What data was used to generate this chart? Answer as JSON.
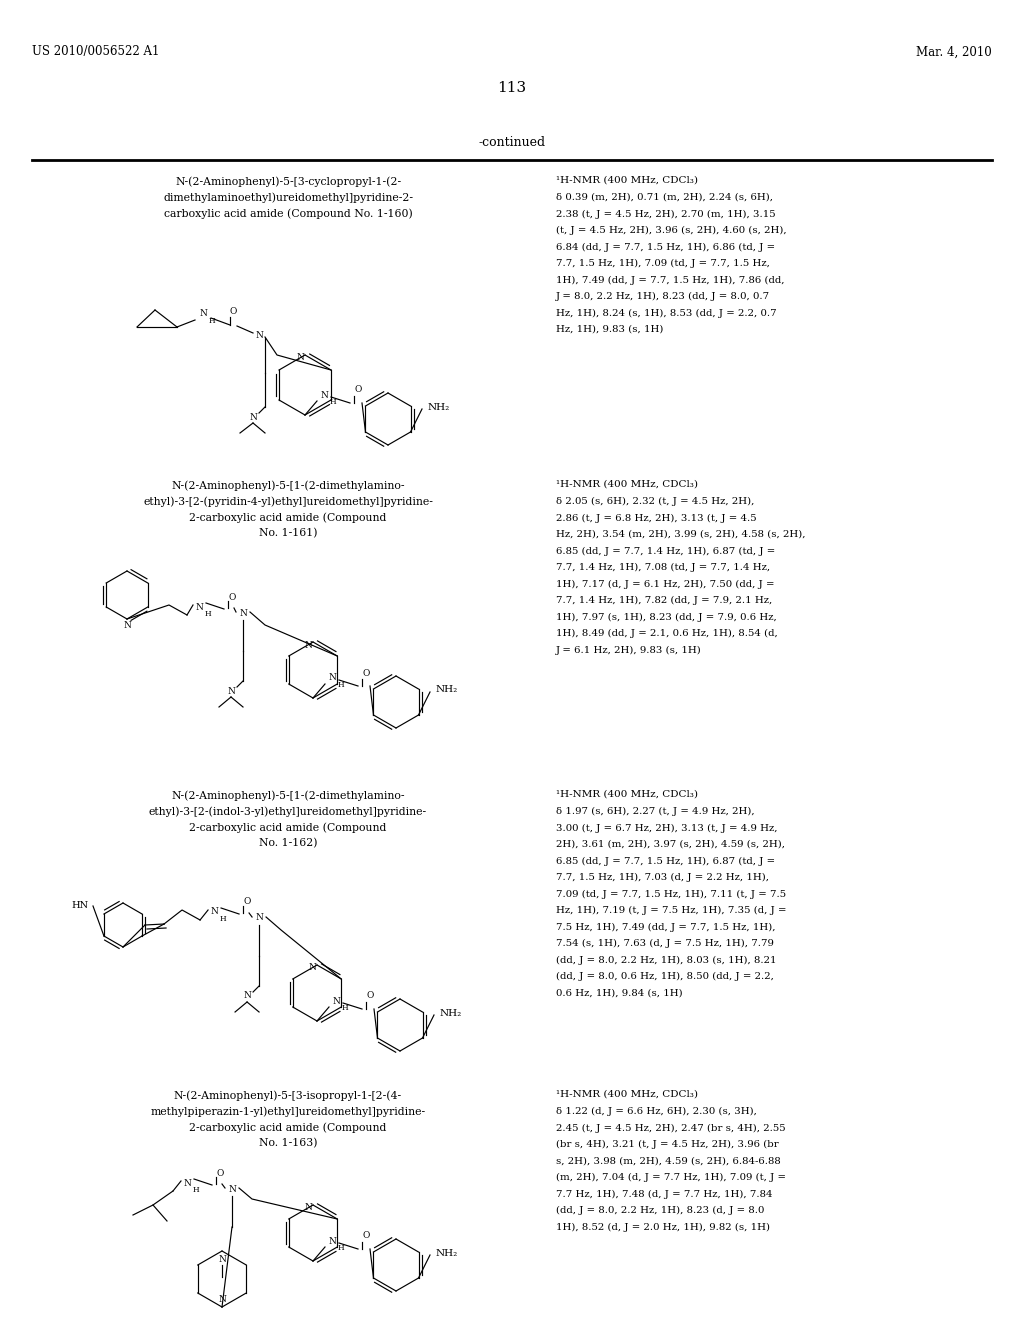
{
  "page_number": "113",
  "top_left": "US 2010/0056522 A1",
  "top_right": "Mar. 4, 2010",
  "continued_label": "-continued",
  "background_color": "#ffffff",
  "text_color": "#000000",
  "entries": [
    {
      "compound_name": "N-(2-Aminophenyl)-5-[3-cyclopropyl-1-(2-\ndimethylaminoethyl)ureidomethyl]pyridine-2-\ncarboxylic acid amide (Compound No. 1-160)",
      "nmr_line1": "¹H-NMR (400 MHz, CDCl₃)",
      "nmr_rest": "δ 0.39 (m, 2H), 0.71 (m, 2H), 2.24 (s, 6H),\n2.38 (t, J = 4.5 Hz, 2H), 2.70 (m, 1H), 3.15\n(t, J = 4.5 Hz, 2H), 3.96 (s, 2H), 4.60 (s, 2H),\n6.84 (dd, J = 7.7, 1.5 Hz, 1H), 6.86 (td, J =\n7.7, 1.5 Hz, 1H), 7.09 (td, J = 7.7, 1.5 Hz,\n1H), 7.49 (dd, J = 7.7, 1.5 Hz, 1H), 7.86 (dd,\nJ = 8.0, 2.2 Hz, 1H), 8.23 (dd, J = 8.0, 0.7\nHz, 1H), 8.24 (s, 1H), 8.53 (dd, J = 2.2, 0.7\nHz, 1H), 9.83 (s, 1H)"
    },
    {
      "compound_name": "N-(2-Aminophenyl)-5-[1-(2-dimethylamino-\nethyl)-3-[2-(pyridin-4-yl)ethyl]ureidomethyl]pyridine-\n2-carboxylic acid amide (Compound\nNo. 1-161)",
      "nmr_line1": "¹H-NMR (400 MHz, CDCl₃)",
      "nmr_rest": "δ 2.05 (s, 6H), 2.32 (t, J = 4.5 Hz, 2H),\n2.86 (t, J = 6.8 Hz, 2H), 3.13 (t, J = 4.5\nHz, 2H), 3.54 (m, 2H), 3.99 (s, 2H), 4.58 (s, 2H),\n6.85 (dd, J = 7.7, 1.4 Hz, 1H), 6.87 (td, J =\n7.7, 1.4 Hz, 1H), 7.08 (td, J = 7.7, 1.4 Hz,\n1H), 7.17 (d, J = 6.1 Hz, 2H), 7.50 (dd, J =\n7.7, 1.4 Hz, 1H), 7.82 (dd, J = 7.9, 2.1 Hz,\n1H), 7.97 (s, 1H), 8.23 (dd, J = 7.9, 0.6 Hz,\n1H), 8.49 (dd, J = 2.1, 0.6 Hz, 1H), 8.54 (d,\nJ = 6.1 Hz, 2H), 9.83 (s, 1H)"
    },
    {
      "compound_name": "N-(2-Aminophenyl)-5-[1-(2-dimethylamino-\nethyl)-3-[2-(indol-3-yl)ethyl]ureidomethyl]pyridine-\n2-carboxylic acid amide (Compound\nNo. 1-162)",
      "nmr_line1": "¹H-NMR (400 MHz, CDCl₃)",
      "nmr_rest": "δ 1.97 (s, 6H), 2.27 (t, J = 4.9 Hz, 2H),\n3.00 (t, J = 6.7 Hz, 2H), 3.13 (t, J = 4.9 Hz,\n2H), 3.61 (m, 2H), 3.97 (s, 2H), 4.59 (s, 2H),\n6.85 (dd, J = 7.7, 1.5 Hz, 1H), 6.87 (td, J =\n7.7, 1.5 Hz, 1H), 7.03 (d, J = 2.2 Hz, 1H),\n7.09 (td, J = 7.7, 1.5 Hz, 1H), 7.11 (t, J = 7.5\nHz, 1H), 7.19 (t, J = 7.5 Hz, 1H), 7.35 (d, J =\n7.5 Hz, 1H), 7.49 (dd, J = 7.7, 1.5 Hz, 1H),\n7.54 (s, 1H), 7.63 (d, J = 7.5 Hz, 1H), 7.79\n(dd, J = 8.0, 2.2 Hz, 1H), 8.03 (s, 1H), 8.21\n(dd, J = 8.0, 0.6 Hz, 1H), 8.50 (dd, J = 2.2,\n0.6 Hz, 1H), 9.84 (s, 1H)"
    },
    {
      "compound_name": "N-(2-Aminophenyl)-5-[3-isopropyl-1-[2-(4-\nmethylpiperazin-1-yl)ethyl]ureidomethyl]pyridine-\n2-carboxylic acid amide (Compound\nNo. 1-163)",
      "nmr_line1": "¹H-NMR (400 MHz, CDCl₃)",
      "nmr_rest": "δ 1.22 (d, J = 6.6 Hz, 6H), 2.30 (s, 3H),\n2.45 (t, J = 4.5 Hz, 2H), 2.47 (br s, 4H), 2.55\n(br s, 4H), 3.21 (t, J = 4.5 Hz, 2H), 3.96 (br\ns, 2H), 3.98 (m, 2H), 4.59 (s, 2H), 6.84-6.88\n(m, 2H), 7.04 (d, J = 7.7 Hz, 1H), 7.09 (t, J =\n7.7 Hz, 1H), 7.48 (d, J = 7.7 Hz, 1H), 7.84\n(dd, J = 8.0, 2.2 Hz, 1H), 8.23 (d, J = 8.0\n1H), 8.52 (d, J = 2.0 Hz, 1H), 9.82 (s, 1H)"
    }
  ]
}
